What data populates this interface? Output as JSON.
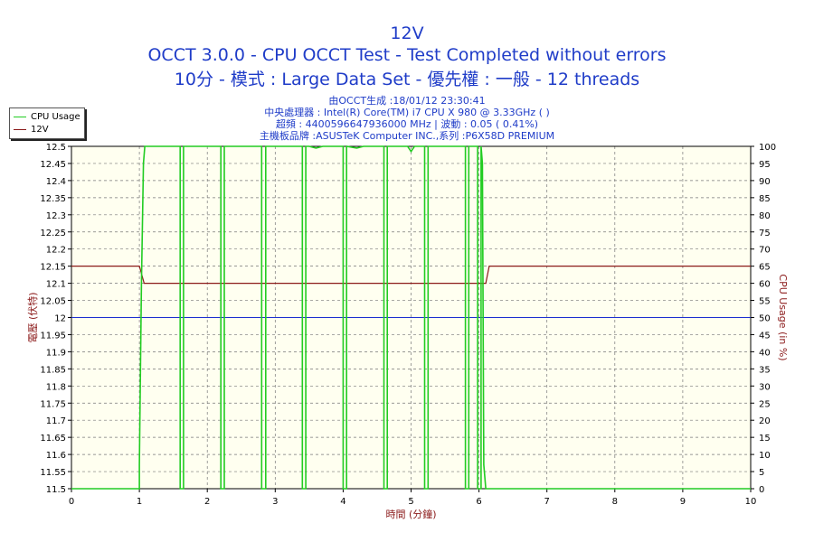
{
  "header": {
    "title": "12V",
    "subtitle1": "OCCT 3.0.0 - CPU OCCT Test - Test Completed without errors",
    "subtitle2": "10分 - 模式 : Large Data Set - 優先權 : 一般 - 12 threads"
  },
  "info": {
    "line1": "由OCCT生成 :18/01/12 23:30:41",
    "line2": "中央處理器 : Intel(R) Core(TM) i7 CPU X 980 @ 3.33GHz (  )",
    "line3": "超頻 : 4400596647936000 MHz | 波動 : 0.05 ( 0.41%)",
    "line4": "主機板品牌 :ASUSTeK Computer INC.,系列 :P6X58D PREMIUM"
  },
  "legend": {
    "cpu": "CPU Usage",
    "v12": "12V"
  },
  "colors": {
    "cpu": "#22cc22",
    "v12": "#8b1a1a",
    "ref": "#1c2fd0",
    "plot_bg": "#fffff0",
    "title": "#1f3cc8",
    "axis_label": "#8b1a1a"
  },
  "chart_data": {
    "type": "line",
    "xlabel": "時間 (分鐘)",
    "ylabel_left": "電壓 (伏特)",
    "ylabel_right": "CPU Usage (in %)",
    "x_ticks": [
      0,
      1,
      2,
      3,
      4,
      5,
      6,
      7,
      8,
      9,
      10
    ],
    "y_left_ticks": [
      11.5,
      11.55,
      11.6,
      11.65,
      11.7,
      11.75,
      11.8,
      11.85,
      11.9,
      11.95,
      12,
      12.05,
      12.1,
      12.15,
      12.2,
      12.25,
      12.3,
      12.35,
      12.4,
      12.45,
      12.5
    ],
    "y_right_ticks": [
      0,
      5,
      10,
      15,
      20,
      25,
      30,
      35,
      40,
      45,
      50,
      55,
      60,
      65,
      70,
      75,
      80,
      85,
      90,
      95,
      100
    ],
    "xlim": [
      0,
      10
    ],
    "ylim_left": [
      11.5,
      12.5
    ],
    "ylim_right": [
      0,
      100
    ],
    "grid": true,
    "reference_line": 12,
    "series": [
      {
        "name": "12V",
        "axis": "left",
        "points": [
          [
            0,
            12.15
          ],
          [
            1.0,
            12.15
          ],
          [
            1.07,
            12.1
          ],
          [
            6.1,
            12.1
          ],
          [
            6.15,
            12.15
          ],
          [
            10,
            12.15
          ]
        ]
      },
      {
        "name": "CPU Usage",
        "axis": "right",
        "points": [
          [
            0,
            0
          ],
          [
            0.97,
            0
          ],
          [
            1.0,
            0
          ],
          [
            1.0,
            7
          ],
          [
            1.03,
            60
          ],
          [
            1.06,
            95
          ],
          [
            1.08,
            100
          ],
          [
            1.6,
            100
          ],
          [
            1.6,
            0
          ],
          [
            1.65,
            0
          ],
          [
            1.65,
            100
          ],
          [
            2.2,
            100
          ],
          [
            2.2,
            0
          ],
          [
            2.25,
            0
          ],
          [
            2.25,
            100
          ],
          [
            2.8,
            100
          ],
          [
            2.8,
            0
          ],
          [
            2.86,
            0
          ],
          [
            2.86,
            100
          ],
          [
            3.4,
            100
          ],
          [
            3.4,
            0
          ],
          [
            3.45,
            0
          ],
          [
            3.45,
            100
          ],
          [
            3.5,
            100
          ],
          [
            3.6,
            99.5
          ],
          [
            3.7,
            100
          ],
          [
            4.0,
            100
          ],
          [
            4.0,
            0
          ],
          [
            4.05,
            0
          ],
          [
            4.05,
            100
          ],
          [
            4.2,
            99.5
          ],
          [
            4.3,
            100
          ],
          [
            4.6,
            100
          ],
          [
            4.6,
            0
          ],
          [
            4.65,
            0
          ],
          [
            4.65,
            100
          ],
          [
            4.95,
            100
          ],
          [
            5.0,
            98.5
          ],
          [
            5.05,
            100
          ],
          [
            5.2,
            100
          ],
          [
            5.2,
            0
          ],
          [
            5.25,
            0
          ],
          [
            5.25,
            100
          ],
          [
            5.8,
            100
          ],
          [
            5.8,
            0
          ],
          [
            5.85,
            0
          ],
          [
            5.85,
            100
          ],
          [
            5.98,
            100
          ],
          [
            5.98,
            0
          ],
          [
            6.03,
            0
          ],
          [
            6.03,
            100
          ],
          [
            6.05,
            95
          ],
          [
            6.07,
            7
          ],
          [
            6.1,
            0
          ],
          [
            10,
            0
          ]
        ]
      }
    ]
  }
}
